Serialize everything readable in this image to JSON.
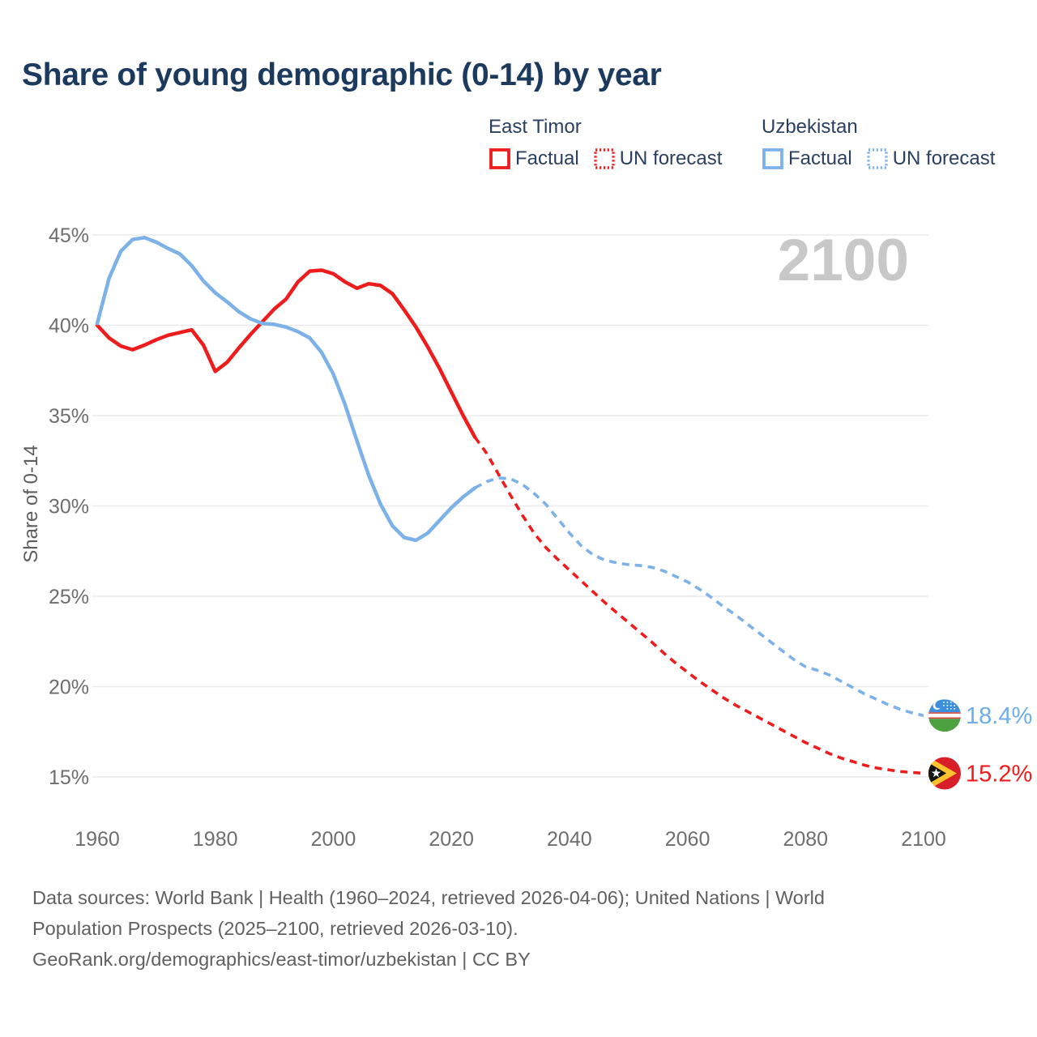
{
  "title": "Share of young demographic (0-14) by year",
  "watermark": "2100",
  "legend": {
    "groups": [
      {
        "country": "East Timor",
        "color": "#ee1c1c",
        "items": [
          {
            "label": "Factual",
            "style": "solid"
          },
          {
            "label": "UN forecast",
            "style": "dotted"
          }
        ]
      },
      {
        "country": "Uzbekistan",
        "color": "#7cb2e8",
        "items": [
          {
            "label": "Factual",
            "style": "solid"
          },
          {
            "label": "UN forecast",
            "style": "dotted"
          }
        ]
      }
    ]
  },
  "end_labels": [
    {
      "country": "Uzbekistan",
      "value": "18.4%",
      "color": "#6fadea"
    },
    {
      "country": "East Timor",
      "value": "15.2%",
      "color": "#ee1c1c"
    }
  ],
  "footer": {
    "lines": [
      "Data sources: World Bank | Health (1960–2024, retrieved 2026-04-06); United Nations | World",
      "Population Prospects (2025–2100, retrieved 2026-03-10).",
      "GeoRank.org/demographics/east-timor/uzbekistan | CC BY"
    ]
  },
  "chart_data": {
    "type": "line",
    "title": "Share of young demographic (0-14) by year",
    "xlabel": "",
    "ylabel": "Share of 0-14",
    "xlim": [
      1960,
      2100
    ],
    "ylim": [
      15,
      45
    ],
    "grid": "horizontal-only",
    "legend_position": "top-right",
    "x_ticks": [
      1960,
      1980,
      2000,
      2020,
      2040,
      2060,
      2080,
      2100
    ],
    "y_ticks": [
      {
        "value": 45,
        "label": "45%"
      },
      {
        "value": 40,
        "label": "40%"
      },
      {
        "value": 35,
        "label": "35%"
      },
      {
        "value": 30,
        "label": "30%"
      },
      {
        "value": 25,
        "label": "25%"
      },
      {
        "value": 20,
        "label": "20%"
      },
      {
        "value": 15,
        "label": "15%"
      }
    ],
    "series": [
      {
        "name": "East Timor Factual",
        "country": "East Timor",
        "kind": "factual",
        "color": "#ee1c1c",
        "style": "solid",
        "points": [
          [
            1960,
            40.0
          ],
          [
            1962,
            39.3
          ],
          [
            1964,
            38.85
          ],
          [
            1966,
            38.65
          ],
          [
            1968,
            38.9
          ],
          [
            1970,
            39.2
          ],
          [
            1972,
            39.45
          ],
          [
            1974,
            39.6
          ],
          [
            1976,
            39.75
          ],
          [
            1978,
            38.9
          ],
          [
            1980,
            37.45
          ],
          [
            1982,
            37.95
          ],
          [
            1984,
            38.75
          ],
          [
            1986,
            39.5
          ],
          [
            1988,
            40.2
          ],
          [
            1990,
            40.9
          ],
          [
            1992,
            41.45
          ],
          [
            1994,
            42.4
          ],
          [
            1996,
            43.0
          ],
          [
            1998,
            43.05
          ],
          [
            2000,
            42.85
          ],
          [
            2002,
            42.4
          ],
          [
            2004,
            42.05
          ],
          [
            2006,
            42.3
          ],
          [
            2008,
            42.2
          ],
          [
            2010,
            41.75
          ],
          [
            2012,
            40.85
          ],
          [
            2014,
            39.9
          ],
          [
            2016,
            38.8
          ],
          [
            2018,
            37.6
          ],
          [
            2020,
            36.3
          ],
          [
            2022,
            35.0
          ],
          [
            2024,
            33.8
          ]
        ]
      },
      {
        "name": "East Timor UN forecast",
        "country": "East Timor",
        "kind": "forecast",
        "color": "#ee1c1c",
        "style": "dashed",
        "points": [
          [
            2024,
            33.8
          ],
          [
            2026,
            32.9
          ],
          [
            2028,
            31.75
          ],
          [
            2030,
            30.6
          ],
          [
            2032,
            29.5
          ],
          [
            2034,
            28.5
          ],
          [
            2036,
            27.7
          ],
          [
            2038,
            27.05
          ],
          [
            2040,
            26.45
          ],
          [
            2042,
            25.85
          ],
          [
            2044,
            25.25
          ],
          [
            2046,
            24.65
          ],
          [
            2048,
            24.1
          ],
          [
            2050,
            23.55
          ],
          [
            2052,
            23.0
          ],
          [
            2054,
            22.45
          ],
          [
            2056,
            21.85
          ],
          [
            2058,
            21.3
          ],
          [
            2060,
            20.8
          ],
          [
            2062,
            20.3
          ],
          [
            2064,
            19.85
          ],
          [
            2066,
            19.4
          ],
          [
            2068,
            19.0
          ],
          [
            2070,
            18.65
          ],
          [
            2072,
            18.3
          ],
          [
            2074,
            17.95
          ],
          [
            2076,
            17.6
          ],
          [
            2078,
            17.25
          ],
          [
            2080,
            16.9
          ],
          [
            2082,
            16.6
          ],
          [
            2084,
            16.3
          ],
          [
            2086,
            16.05
          ],
          [
            2088,
            15.85
          ],
          [
            2090,
            15.65
          ],
          [
            2092,
            15.5
          ],
          [
            2094,
            15.4
          ],
          [
            2096,
            15.3
          ],
          [
            2098,
            15.25
          ],
          [
            2100,
            15.2
          ]
        ]
      },
      {
        "name": "Uzbekistan Factual",
        "country": "Uzbekistan",
        "kind": "factual",
        "color": "#7cb2e8",
        "style": "solid",
        "points": [
          [
            1960,
            40.1
          ],
          [
            1962,
            42.6
          ],
          [
            1964,
            44.1
          ],
          [
            1966,
            44.75
          ],
          [
            1968,
            44.85
          ],
          [
            1970,
            44.6
          ],
          [
            1972,
            44.25
          ],
          [
            1974,
            43.95
          ],
          [
            1976,
            43.3
          ],
          [
            1978,
            42.45
          ],
          [
            1980,
            41.8
          ],
          [
            1982,
            41.3
          ],
          [
            1984,
            40.75
          ],
          [
            1986,
            40.35
          ],
          [
            1988,
            40.1
          ],
          [
            1990,
            40.05
          ],
          [
            1992,
            39.9
          ],
          [
            1994,
            39.65
          ],
          [
            1996,
            39.3
          ],
          [
            1998,
            38.5
          ],
          [
            2000,
            37.3
          ],
          [
            2002,
            35.6
          ],
          [
            2004,
            33.6
          ],
          [
            2006,
            31.7
          ],
          [
            2008,
            30.1
          ],
          [
            2010,
            28.9
          ],
          [
            2012,
            28.25
          ],
          [
            2014,
            28.1
          ],
          [
            2016,
            28.5
          ],
          [
            2018,
            29.2
          ],
          [
            2020,
            29.9
          ],
          [
            2022,
            30.5
          ],
          [
            2024,
            31.0
          ]
        ]
      },
      {
        "name": "Uzbekistan UN forecast",
        "country": "Uzbekistan",
        "kind": "forecast",
        "color": "#7cb2e8",
        "style": "dashed",
        "points": [
          [
            2024,
            31.0
          ],
          [
            2026,
            31.35
          ],
          [
            2028,
            31.55
          ],
          [
            2030,
            31.5
          ],
          [
            2032,
            31.2
          ],
          [
            2034,
            30.7
          ],
          [
            2036,
            30.1
          ],
          [
            2038,
            29.3
          ],
          [
            2040,
            28.5
          ],
          [
            2042,
            27.8
          ],
          [
            2044,
            27.3
          ],
          [
            2046,
            27.0
          ],
          [
            2048,
            26.85
          ],
          [
            2050,
            26.75
          ],
          [
            2052,
            26.7
          ],
          [
            2054,
            26.6
          ],
          [
            2056,
            26.4
          ],
          [
            2058,
            26.1
          ],
          [
            2060,
            25.8
          ],
          [
            2062,
            25.4
          ],
          [
            2064,
            24.95
          ],
          [
            2066,
            24.45
          ],
          [
            2068,
            24.0
          ],
          [
            2070,
            23.5
          ],
          [
            2072,
            23.0
          ],
          [
            2074,
            22.5
          ],
          [
            2076,
            22.0
          ],
          [
            2078,
            21.5
          ],
          [
            2080,
            21.1
          ],
          [
            2082,
            20.9
          ],
          [
            2084,
            20.65
          ],
          [
            2086,
            20.3
          ],
          [
            2088,
            19.95
          ],
          [
            2090,
            19.6
          ],
          [
            2092,
            19.3
          ],
          [
            2094,
            19.0
          ],
          [
            2096,
            18.75
          ],
          [
            2098,
            18.55
          ],
          [
            2100,
            18.4
          ]
        ]
      }
    ]
  }
}
